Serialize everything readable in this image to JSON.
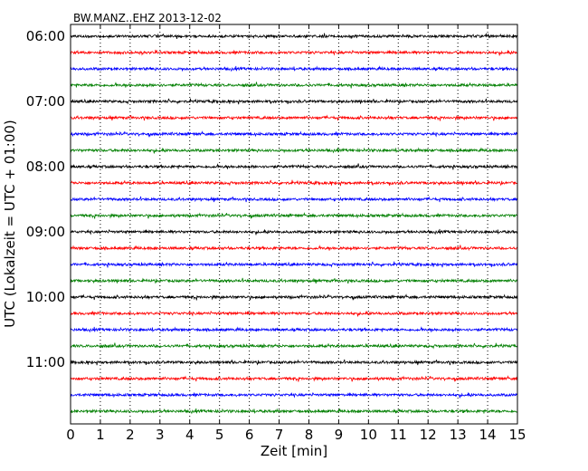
{
  "chart_data": {
    "type": "line",
    "title": "BW.MANZ..EHZ 2013-12-02",
    "xlabel": "Zeit  [min]",
    "ylabel": "UTC (Lokalzeit = UTC + 01:00)",
    "xlim": [
      0,
      15
    ],
    "x_ticks": [
      "0",
      "1",
      "2",
      "3",
      "4",
      "5",
      "6",
      "7",
      "8",
      "9",
      "10",
      "11",
      "12",
      "13",
      "14",
      "15"
    ],
    "y_ticks": [
      "06:00",
      "07:00",
      "08:00",
      "09:00",
      "10:00",
      "11:00"
    ],
    "grid": "vertical dotted",
    "trace_colors": [
      "#000000",
      "#ff0000",
      "#0000ff",
      "#007f00"
    ],
    "traces": [
      {
        "start": "06:00"
      },
      {
        "start": "06:15"
      },
      {
        "start": "06:30"
      },
      {
        "start": "06:45"
      },
      {
        "start": "07:00"
      },
      {
        "start": "07:15"
      },
      {
        "start": "07:30"
      },
      {
        "start": "07:45"
      },
      {
        "start": "08:00"
      },
      {
        "start": "08:15"
      },
      {
        "start": "08:30"
      },
      {
        "start": "08:45"
      },
      {
        "start": "09:00"
      },
      {
        "start": "09:15"
      },
      {
        "start": "09:30"
      },
      {
        "start": "09:45"
      },
      {
        "start": "10:00"
      },
      {
        "start": "10:15"
      },
      {
        "start": "10:30"
      },
      {
        "start": "10:45"
      },
      {
        "start": "11:00"
      },
      {
        "start": "11:15"
      },
      {
        "start": "11:30"
      },
      {
        "start": "11:45"
      }
    ]
  }
}
